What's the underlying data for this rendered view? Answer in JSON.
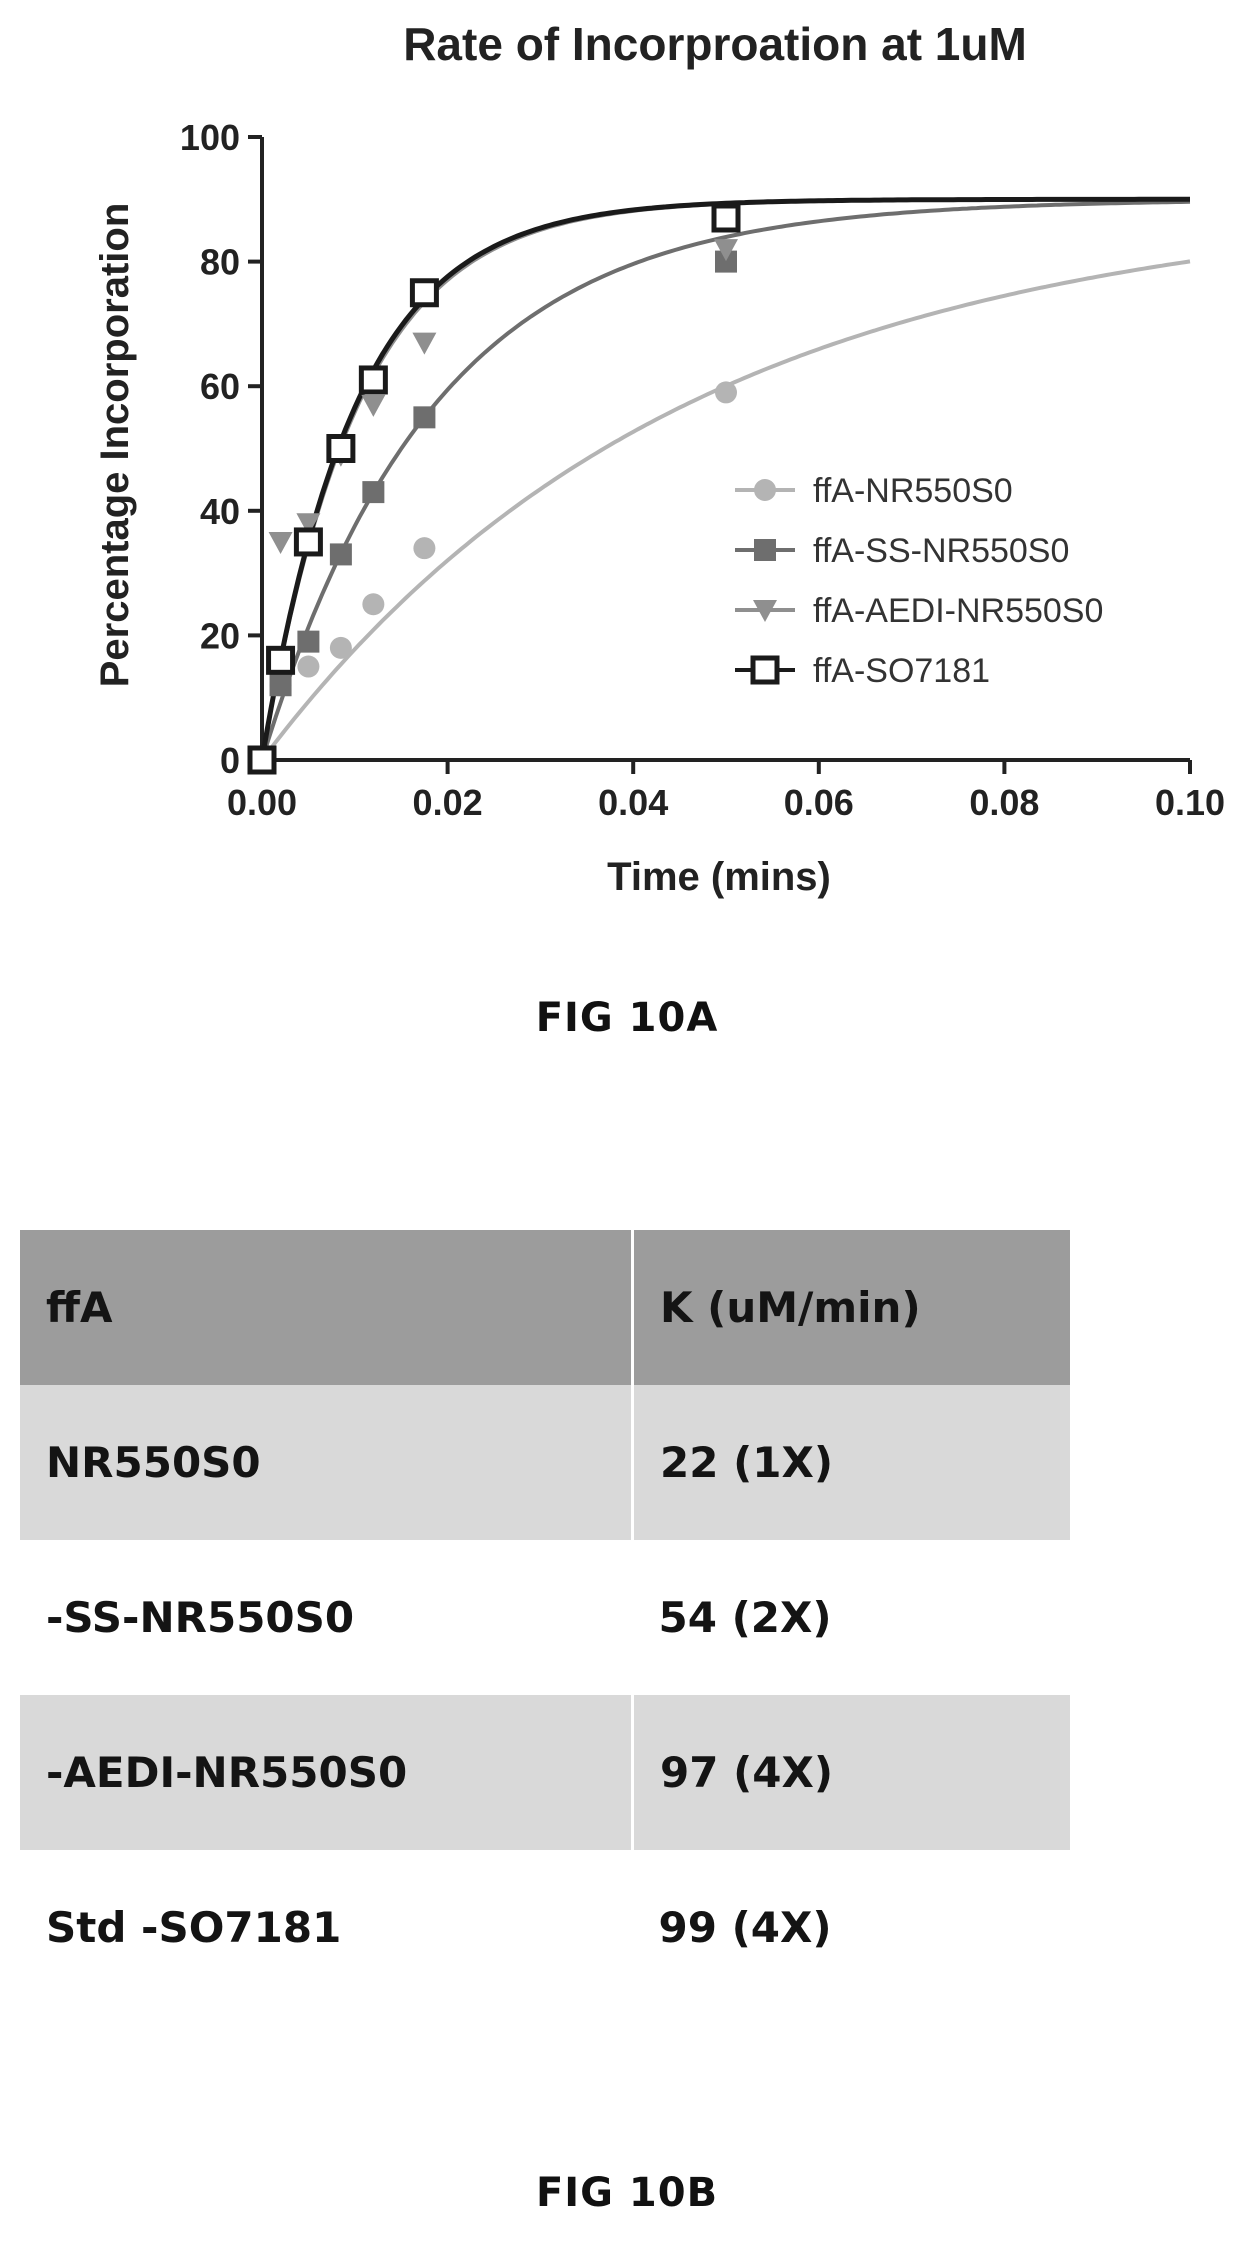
{
  "chart_data": {
    "type": "scatter",
    "title": "Rate of Incorproation at 1uM",
    "xlabel": "Time (mins)",
    "ylabel": "Percentage Incorporation",
    "xlim": [
      0,
      0.1
    ],
    "ylim": [
      0,
      100
    ],
    "xticks": [
      "0.00",
      "0.02",
      "0.04",
      "0.06",
      "0.08",
      "0.10"
    ],
    "yticks": [
      "0",
      "20",
      "40",
      "60",
      "80",
      "100"
    ],
    "grid": false,
    "legend_position": "center-right",
    "series": [
      {
        "name": "ffA-NR550S0",
        "marker": "circle",
        "color": "#b4b4b4",
        "points": [
          [
            0,
            0
          ],
          [
            0.002,
            12
          ],
          [
            0.005,
            15
          ],
          [
            0.0085,
            18
          ],
          [
            0.012,
            25
          ],
          [
            0.0175,
            34
          ],
          [
            0.05,
            59
          ]
        ],
        "fit_k": 22,
        "fit_plateau": 90
      },
      {
        "name": "ffA-SS-NR550S0",
        "marker": "square",
        "color": "#6e6e6e",
        "points": [
          [
            0,
            0
          ],
          [
            0.002,
            12
          ],
          [
            0.005,
            19
          ],
          [
            0.0085,
            33
          ],
          [
            0.012,
            43
          ],
          [
            0.0175,
            55
          ],
          [
            0.05,
            80
          ]
        ],
        "fit_k": 54,
        "fit_plateau": 90
      },
      {
        "name": "ffA-AEDI-NR550S0",
        "marker": "triangle-down",
        "color": "#8f8f8f",
        "points": [
          [
            0,
            0
          ],
          [
            0.002,
            35
          ],
          [
            0.005,
            38
          ],
          [
            0.0085,
            49
          ],
          [
            0.012,
            57
          ],
          [
            0.0175,
            67
          ],
          [
            0.05,
            82
          ]
        ],
        "fit_k": 97,
        "fit_plateau": 90
      },
      {
        "name": "ffA-SO7181",
        "marker": "open-square",
        "color": "#1a1a1a",
        "points": [
          [
            0,
            0
          ],
          [
            0.002,
            16
          ],
          [
            0.005,
            35
          ],
          [
            0.0085,
            50
          ],
          [
            0.012,
            61
          ],
          [
            0.0175,
            75
          ],
          [
            0.05,
            87
          ]
        ],
        "fit_k": 99,
        "fit_plateau": 90
      }
    ]
  },
  "fig_a_label": "FIG 10A",
  "fig_b_label": "FIG 10B",
  "table": {
    "header": [
      "ffA",
      "K (uM/min)"
    ],
    "rows": [
      [
        "NR550S0",
        "22 (1X)"
      ],
      [
        "-SS-NR550S0",
        "54 (2X)"
      ],
      [
        "-AEDI-NR550S0",
        "97 (4X)"
      ],
      [
        "Std -SO7181",
        "99 (4X)"
      ]
    ]
  }
}
